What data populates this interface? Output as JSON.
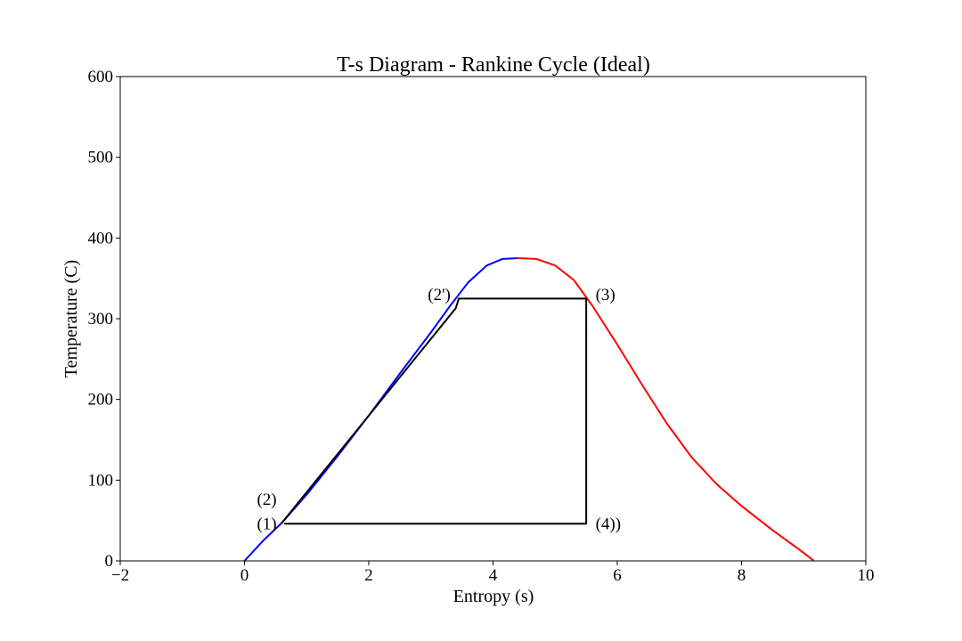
{
  "chart_data": {
    "type": "line",
    "title": "T-s Diagram - Rankine Cycle (Ideal)",
    "xlabel": "Entropy (s)",
    "ylabel": "Temperature (C)",
    "xlim": [
      -2,
      10
    ],
    "ylim": [
      0,
      600
    ],
    "xticks": [
      -2,
      0,
      2,
      4,
      6,
      8,
      10
    ],
    "yticks": [
      0,
      100,
      200,
      300,
      400,
      500,
      600
    ],
    "grid": false,
    "series": [
      {
        "color": "#0000ff",
        "x": [
          0.0,
          0.3,
          0.6,
          1.0,
          1.5,
          2.0,
          2.5,
          3.0,
          3.3,
          3.6,
          3.9,
          4.15,
          4.4
        ],
        "y": [
          0,
          25,
          47,
          82,
          130,
          180,
          232,
          283,
          315,
          345,
          366,
          374,
          375
        ]
      },
      {
        "color": "#ff0000",
        "x": [
          4.4,
          4.7,
          5.0,
          5.3,
          5.6,
          6.0,
          6.4,
          6.8,
          7.2,
          7.6,
          8.0,
          8.5,
          9.0,
          9.15
        ],
        "y": [
          375,
          374,
          366,
          348,
          316,
          268,
          218,
          170,
          128,
          95,
          68,
          38,
          10,
          1
        ]
      },
      {
        "color": "#000000",
        "x": [
          0.6,
          3.4,
          3.45,
          5.5,
          5.5,
          0.65
        ],
        "y": [
          47,
          313,
          325,
          325,
          46,
          46
        ]
      }
    ],
    "annotations": [
      {
        "text": "(1)",
        "x": 0.2,
        "y": 46
      },
      {
        "text": "(2)",
        "x": 0.2,
        "y": 76
      },
      {
        "text": "(2')",
        "x": 2.95,
        "y": 330
      },
      {
        "text": "(3)",
        "x": 5.65,
        "y": 330
      },
      {
        "text": "(4))",
        "x": 5.65,
        "y": 46
      }
    ]
  }
}
